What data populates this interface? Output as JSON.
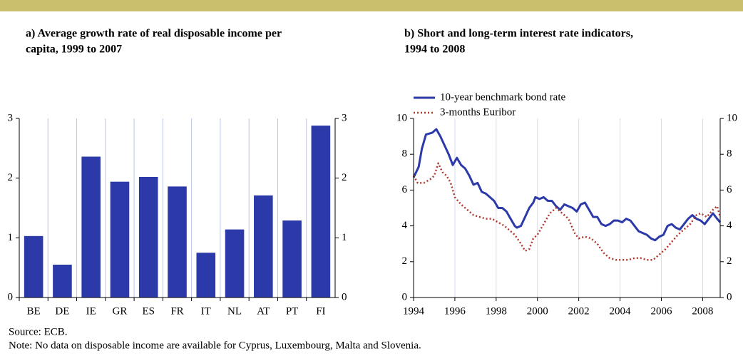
{
  "chart_data": [
    {
      "type": "bar",
      "title": [
        "a) Average growth rate of real disposable income per",
        "capita, 1999 to 2007"
      ],
      "categories": [
        "BE",
        "DE",
        "IE",
        "GR",
        "ES",
        "FR",
        "IT",
        "NL",
        "AT",
        "PT",
        "FI"
      ],
      "values": [
        1.03,
        0.55,
        2.36,
        1.94,
        2.02,
        1.86,
        0.75,
        1.14,
        1.71,
        1.29,
        2.88
      ],
      "color": "#2b3aa8",
      "ylim": [
        0,
        3
      ],
      "yticks": [
        0,
        1,
        2,
        3
      ]
    },
    {
      "type": "line",
      "title": [
        "b) Short and long-term interest rate indicators,",
        "1994 to 2008"
      ],
      "series": [
        {
          "name": "10-year benchmark bond rate",
          "color": "#2b3aa8",
          "dash": "solid",
          "x": [
            1994.0,
            1994.25,
            1994.4,
            1994.6,
            1994.9,
            1995.1,
            1995.3,
            1995.5,
            1995.7,
            1995.9,
            1996.1,
            1996.3,
            1996.5,
            1996.7,
            1996.9,
            1997.1,
            1997.3,
            1997.5,
            1997.7,
            1997.9,
            1998.1,
            1998.3,
            1998.5,
            1998.7,
            1998.9,
            1999.0,
            1999.2,
            1999.4,
            1999.6,
            1999.8,
            1999.9,
            2000.1,
            2000.3,
            2000.5,
            2000.7,
            2000.9,
            2001.1,
            2001.3,
            2001.5,
            2001.7,
            2001.9,
            2002.1,
            2002.3,
            2002.5,
            2002.7,
            2002.9,
            2003.1,
            2003.3,
            2003.5,
            2003.7,
            2003.9,
            2004.1,
            2004.3,
            2004.5,
            2004.7,
            2004.9,
            2005.1,
            2005.3,
            2005.5,
            2005.7,
            2005.9,
            2006.1,
            2006.3,
            2006.5,
            2006.7,
            2006.9,
            2007.1,
            2007.3,
            2007.5,
            2007.7,
            2007.9,
            2008.1,
            2008.3,
            2008.5,
            2008.7,
            2008.85
          ],
          "values": [
            6.7,
            7.3,
            8.3,
            9.1,
            9.2,
            9.4,
            9.0,
            8.5,
            8.0,
            7.4,
            7.8,
            7.4,
            7.2,
            6.8,
            6.3,
            6.4,
            5.9,
            5.8,
            5.6,
            5.4,
            5.0,
            5.0,
            4.8,
            4.4,
            4.0,
            3.9,
            4.0,
            4.5,
            5.0,
            5.3,
            5.6,
            5.5,
            5.6,
            5.4,
            5.4,
            5.1,
            4.9,
            5.2,
            5.1,
            5.0,
            4.8,
            5.2,
            5.3,
            4.9,
            4.5,
            4.5,
            4.1,
            4.0,
            4.1,
            4.3,
            4.3,
            4.2,
            4.4,
            4.3,
            4.0,
            3.7,
            3.6,
            3.5,
            3.3,
            3.2,
            3.4,
            3.5,
            4.0,
            4.1,
            3.9,
            3.8,
            4.1,
            4.4,
            4.6,
            4.4,
            4.3,
            4.1,
            4.4,
            4.7,
            4.4,
            4.2
          ]
        },
        {
          "name": "3-months Euribor",
          "color": "#b0382e",
          "dash": "dotted",
          "x": [
            1994.0,
            1994.2,
            1994.5,
            1994.8,
            1995.0,
            1995.2,
            1995.4,
            1995.6,
            1995.8,
            1996.0,
            1996.3,
            1996.6,
            1996.9,
            1997.2,
            1997.5,
            1997.8,
            1998.1,
            1998.4,
            1998.7,
            1998.9,
            1999.2,
            1999.4,
            1999.6,
            1999.8,
            2000.0,
            2000.3,
            2000.6,
            2000.9,
            2001.2,
            2001.5,
            2001.8,
            2002.0,
            2002.3,
            2002.6,
            2002.9,
            2003.2,
            2003.5,
            2003.8,
            2004.1,
            2004.4,
            2004.7,
            2005.0,
            2005.3,
            2005.6,
            2005.9,
            2006.2,
            2006.5,
            2006.8,
            2007.1,
            2007.4,
            2007.7,
            2007.9,
            2008.2,
            2008.5,
            2008.7,
            2008.85
          ],
          "values": [
            6.8,
            6.4,
            6.4,
            6.6,
            6.8,
            7.5,
            7.0,
            6.8,
            6.4,
            5.6,
            5.2,
            4.9,
            4.6,
            4.5,
            4.4,
            4.4,
            4.2,
            4.0,
            3.7,
            3.5,
            3.0,
            2.6,
            2.7,
            3.3,
            3.5,
            4.1,
            4.7,
            5.0,
            4.7,
            4.4,
            3.6,
            3.3,
            3.4,
            3.3,
            3.0,
            2.5,
            2.2,
            2.1,
            2.1,
            2.1,
            2.2,
            2.2,
            2.1,
            2.1,
            2.4,
            2.7,
            3.1,
            3.5,
            3.8,
            4.1,
            4.6,
            4.7,
            4.5,
            4.9,
            5.1,
            4.5
          ]
        }
      ],
      "xlim": [
        1994,
        2008.85
      ],
      "xticks": [
        1994,
        1996,
        1998,
        2000,
        2002,
        2004,
        2006,
        2008
      ],
      "ylim": [
        0,
        10
      ],
      "yticks": [
        0,
        2,
        4,
        6,
        8,
        10
      ],
      "xgrid": true
    }
  ],
  "footer": {
    "source": "Source: ECB.",
    "note": "Note: No data on disposable income are available for Cyprus, Luxembourg, Malta and Slovenia."
  }
}
